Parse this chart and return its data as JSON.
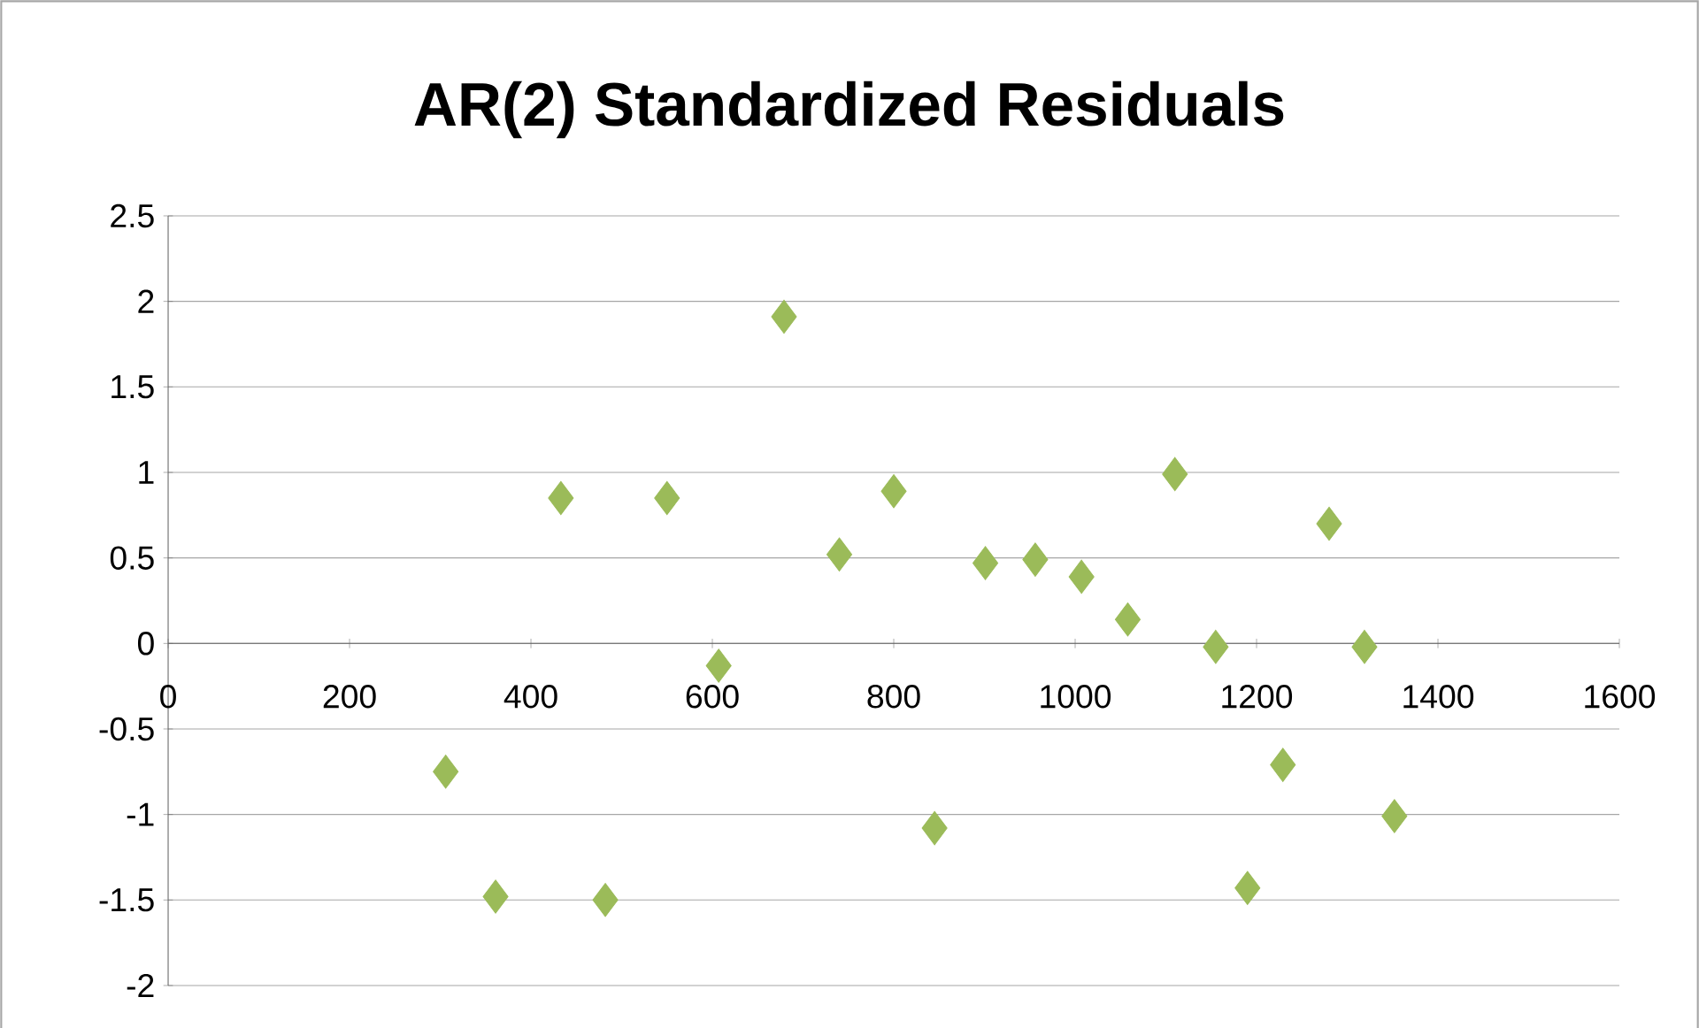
{
  "chart_data": {
    "type": "scatter",
    "title": "AR(2) Standardized Residuals",
    "x": [
      306,
      361,
      433,
      482,
      550,
      607,
      679,
      740,
      800,
      845,
      901,
      956,
      1007,
      1058,
      1110,
      1155,
      1190,
      1229,
      1280,
      1319,
      1352
    ],
    "series": [
      {
        "color": "#9bbb59",
        "values": [
          -0.75,
          -1.48,
          0.85,
          -1.5,
          0.85,
          -0.13,
          1.91,
          0.52,
          0.89,
          -1.08,
          0.47,
          0.49,
          0.39,
          0.14,
          0.99,
          -0.02,
          -1.43,
          -0.71,
          0.7,
          -0.02,
          -1.01
        ]
      }
    ],
    "xlim": [
      0,
      1600
    ],
    "xticks": [
      0,
      200,
      400,
      600,
      800,
      1000,
      1200,
      1400,
      1600
    ],
    "ylim": [
      -2,
      2.5
    ],
    "yticks": [
      -2,
      -1.5,
      -1,
      -0.5,
      0,
      0.5,
      1,
      1.5,
      2,
      2.5
    ],
    "grid": "y",
    "marker": "diamond"
  }
}
